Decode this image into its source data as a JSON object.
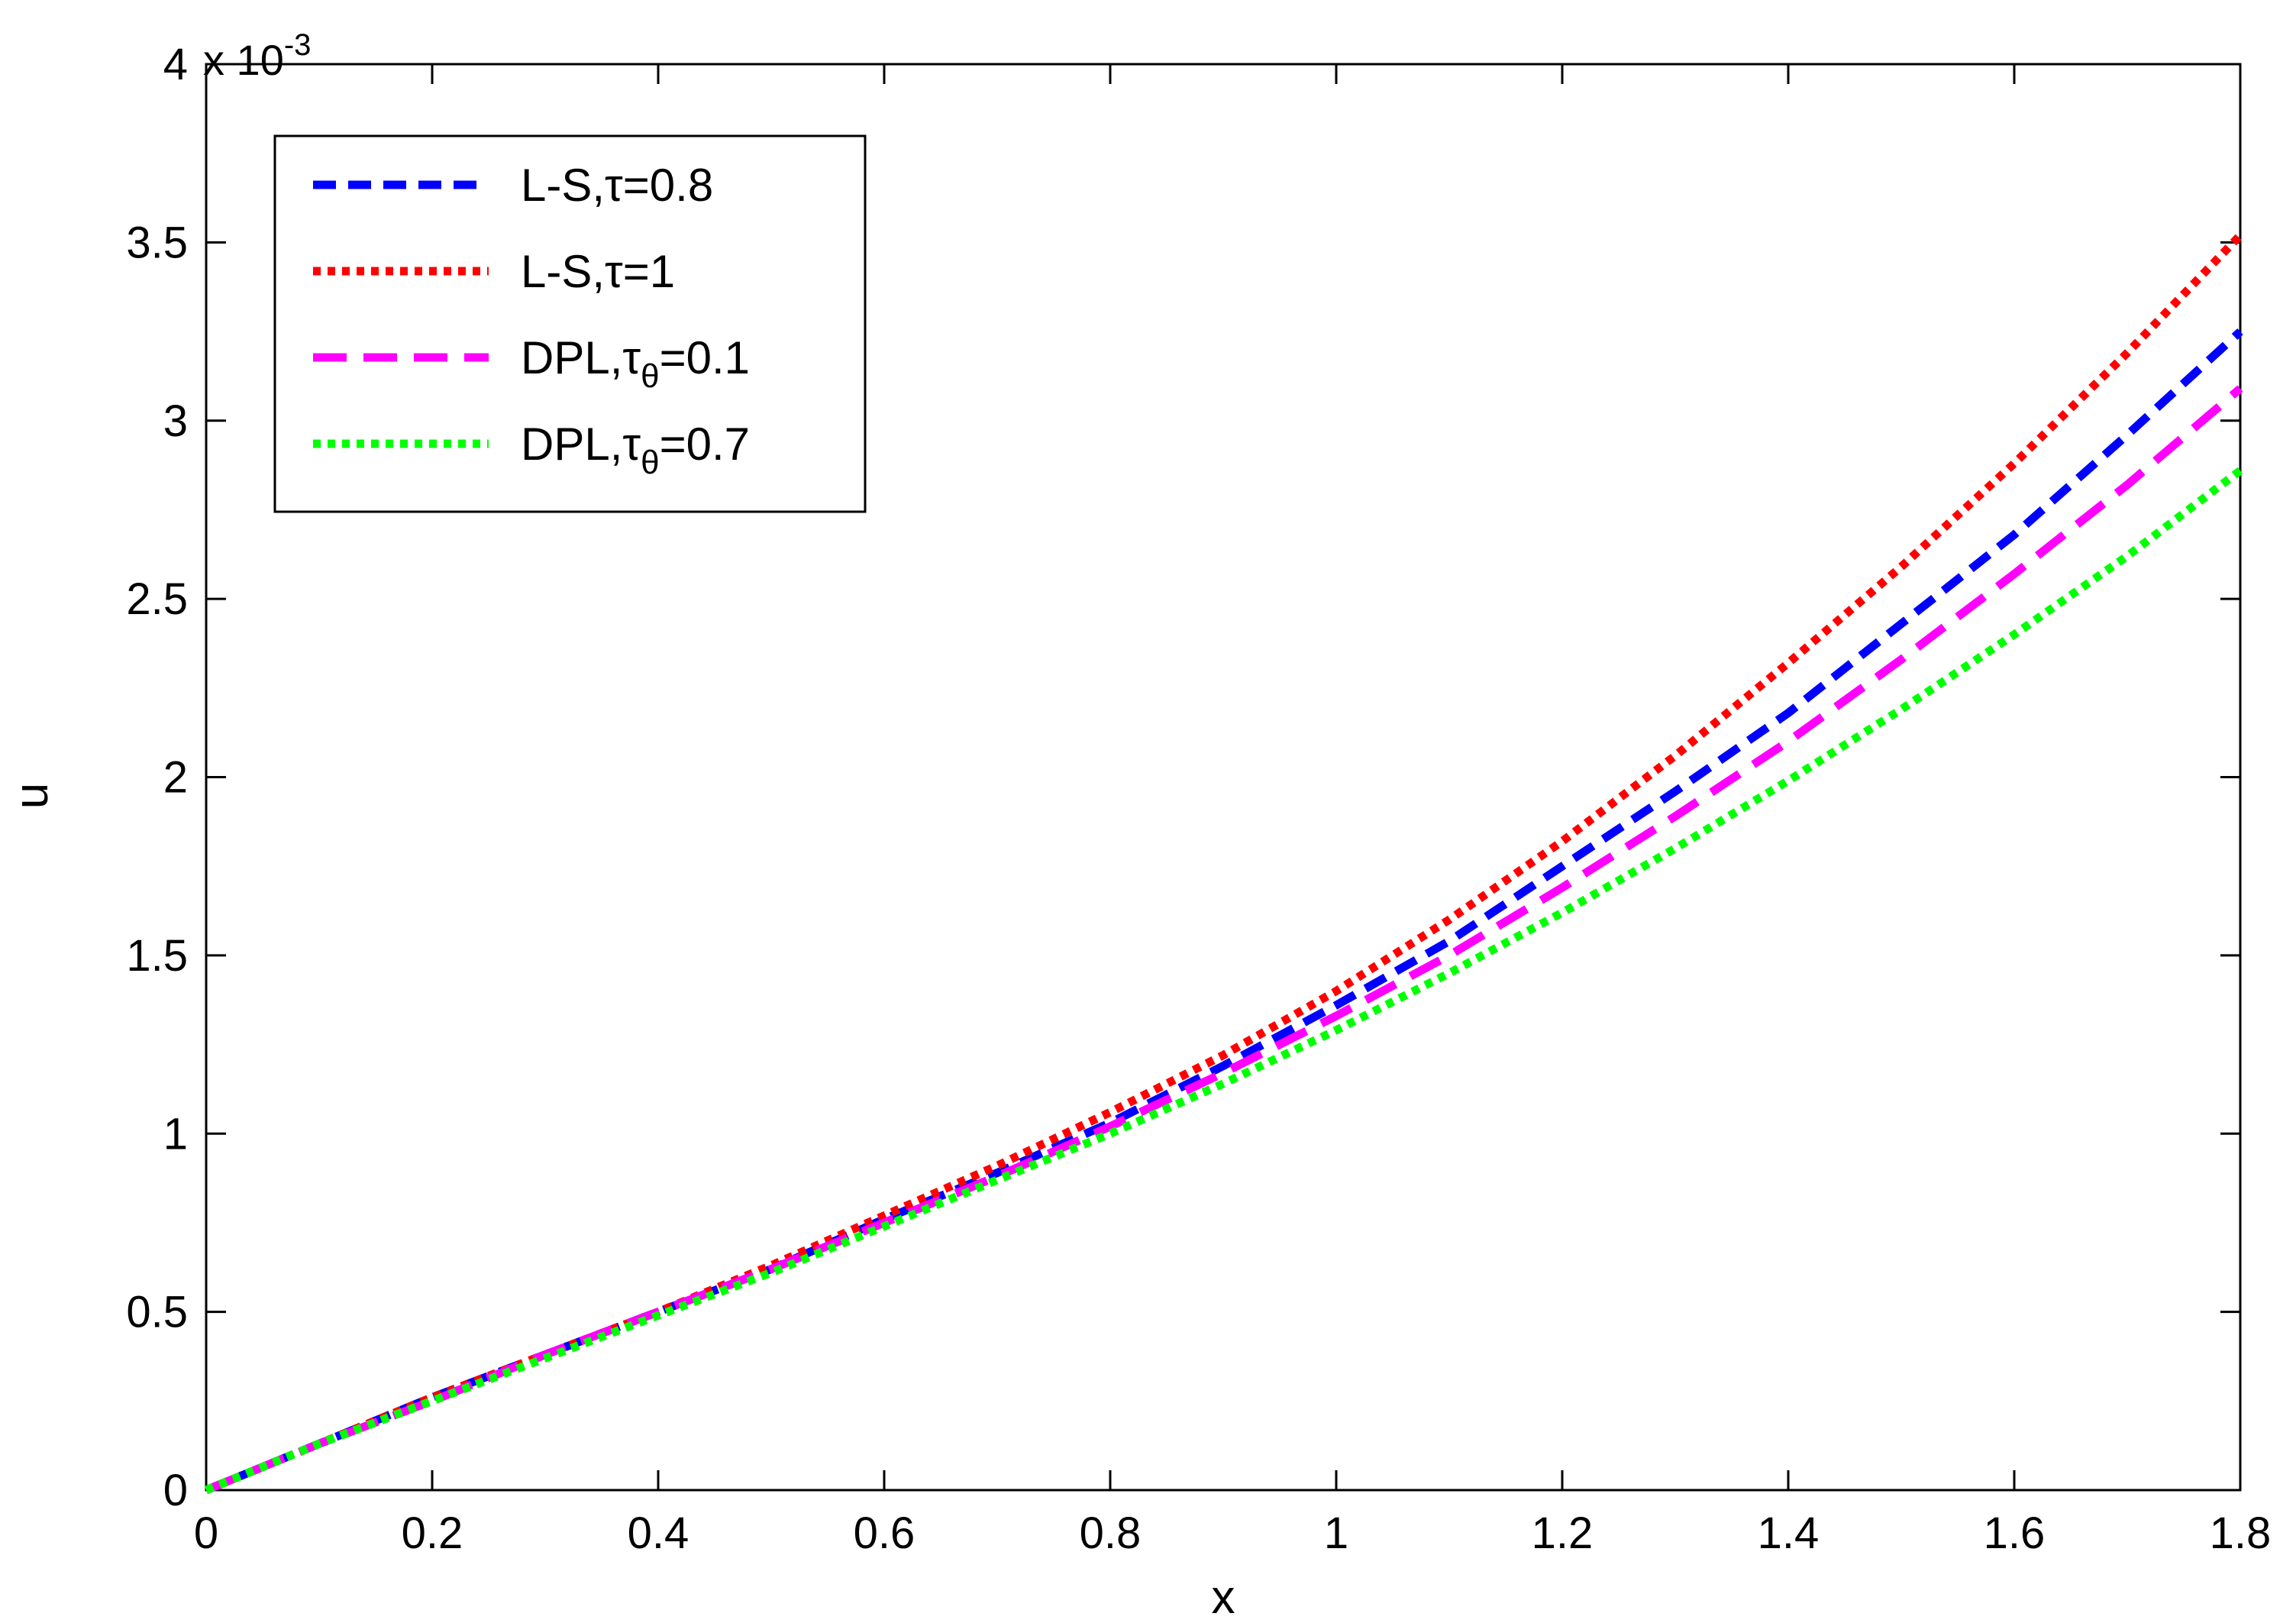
{
  "chart_data": {
    "type": "line",
    "xlabel": "x",
    "ylabel": "u",
    "y_multiplier": {
      "base": "x 10",
      "exponent": "-3"
    },
    "xlim": [
      0,
      1.8
    ],
    "ylim": [
      0,
      4
    ],
    "x_ticks": [
      "0",
      "0.2",
      "0.4",
      "0.6",
      "0.8",
      "1",
      "1.2",
      "1.4",
      "1.6",
      "1.8"
    ],
    "y_ticks": [
      "0",
      "0.5",
      "1",
      "1.5",
      "2",
      "2.5",
      "3",
      "3.5",
      "4"
    ],
    "grid": false,
    "legend_position": "top-left",
    "x": [
      0,
      0.1,
      0.2,
      0.3,
      0.4,
      0.5,
      0.6,
      0.7,
      0.8,
      0.9,
      1.0,
      1.1,
      1.2,
      1.3,
      1.4,
      1.5,
      1.6,
      1.7,
      1.8
    ],
    "series": [
      {
        "name": "L-S,τ=0.8",
        "name_main": "L-S,τ=0.8",
        "name_sub": "",
        "name_tail": "",
        "color": "#0000ff",
        "dash": "dashed",
        "values": [
          0,
          0.13,
          0.26,
          0.38,
          0.5,
          0.62,
          0.76,
          0.89,
          1.03,
          1.19,
          1.36,
          1.54,
          1.75,
          1.96,
          2.18,
          2.43,
          2.68,
          2.96,
          3.25
        ]
      },
      {
        "name": "L-S,τ=1",
        "name_main": "L-S,τ=1",
        "name_sub": "",
        "name_tail": "",
        "color": "#ff0000",
        "dash": "dotted",
        "values": [
          0,
          0.13,
          0.26,
          0.38,
          0.5,
          0.63,
          0.77,
          0.91,
          1.06,
          1.22,
          1.4,
          1.6,
          1.82,
          2.06,
          2.32,
          2.59,
          2.88,
          3.19,
          3.52
        ]
      },
      {
        "name": "DPL,τθ=0.1",
        "name_main": "DPL,τ",
        "name_sub": "θ",
        "name_tail": "=0.1",
        "color": "#ff00ff",
        "dash": "longdash",
        "values": [
          0,
          0.13,
          0.25,
          0.38,
          0.5,
          0.62,
          0.75,
          0.88,
          1.02,
          1.17,
          1.33,
          1.5,
          1.69,
          1.89,
          2.1,
          2.33,
          2.57,
          2.82,
          3.09
        ]
      },
      {
        "name": "DPL,τθ=0.7",
        "name_main": "DPL,τ",
        "name_sub": "θ",
        "name_tail": "=0.7",
        "color": "#00ff00",
        "dash": "dotted",
        "values": [
          0,
          0.13,
          0.25,
          0.37,
          0.49,
          0.61,
          0.74,
          0.87,
          1.0,
          1.14,
          1.29,
          1.45,
          1.62,
          1.8,
          1.99,
          2.19,
          2.4,
          2.62,
          2.86
        ]
      }
    ]
  }
}
